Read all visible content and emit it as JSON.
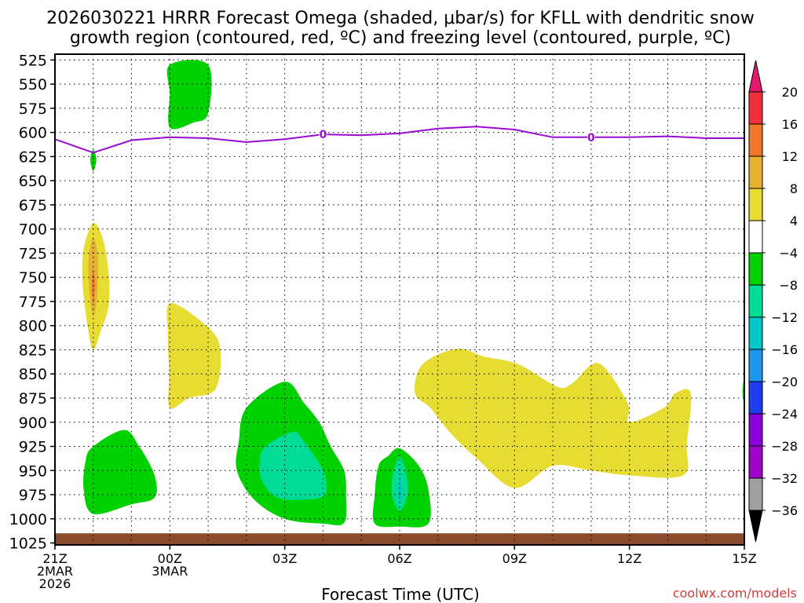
{
  "chart_data": {
    "type": "contour",
    "title_line1": "2026030221 HRRR Forecast Omega (shaded, μbar/s) for KFLL with dendritic snow",
    "title_line2": "growth region (contoured, red, ºC) and freezing level (contoured, purple, ºC)",
    "xlabel": "Forecast Time (UTC)",
    "credit": "coolwx.com/models",
    "x_range_hours": [
      0,
      18
    ],
    "y_range_mb": [
      519,
      1027
    ],
    "y_ticks": [
      525,
      550,
      575,
      600,
      625,
      650,
      675,
      700,
      725,
      750,
      775,
      800,
      825,
      850,
      875,
      900,
      925,
      950,
      975,
      1000,
      1025
    ],
    "x_ticks": [
      {
        "h": 0,
        "lines": [
          "21Z",
          "2MAR",
          "2026"
        ]
      },
      {
        "h": 3,
        "lines": [
          "00Z",
          "3MAR"
        ]
      },
      {
        "h": 6,
        "lines": [
          "03Z"
        ]
      },
      {
        "h": 9,
        "lines": [
          "06Z"
        ]
      },
      {
        "h": 12,
        "lines": [
          "09Z"
        ]
      },
      {
        "h": 15,
        "lines": [
          "12Z"
        ]
      },
      {
        "h": 18,
        "lines": [
          "15Z"
        ]
      }
    ],
    "colorbar": {
      "labels": [
        "20",
        "16",
        "12",
        "8",
        "4",
        "−4",
        "−8",
        "−12",
        "−16",
        "−20",
        "−24",
        "−28",
        "−32",
        "−36"
      ],
      "bands": [
        {
          "from": 16,
          "to": 20,
          "color": "#f0303a"
        },
        {
          "from": 12,
          "to": 16,
          "color": "#f0782a"
        },
        {
          "from": 8,
          "to": 12,
          "color": "#e6b033"
        },
        {
          "from": 4,
          "to": 8,
          "color": "#e6dc32"
        },
        {
          "from": -4,
          "to": 4,
          "color": "#ffffff"
        },
        {
          "from": -8,
          "to": -4,
          "color": "#00d200"
        },
        {
          "from": -12,
          "to": -8,
          "color": "#00dc96"
        },
        {
          "from": -16,
          "to": -12,
          "color": "#00c8c8"
        },
        {
          "from": -20,
          "to": -16,
          "color": "#1e96f0"
        },
        {
          "from": -24,
          "to": -20,
          "color": "#1e3cf0"
        },
        {
          "from": -28,
          "to": -24,
          "color": "#8c00dc"
        },
        {
          "from": -32,
          "to": -28,
          "color": "#a000c8"
        },
        {
          "from": -36,
          "to": -32,
          "color": "#a0a0a0"
        }
      ],
      "top_triangle_color": "#e6196e",
      "bottom_triangle_color": "#000000"
    },
    "freezing_level": {
      "name": "freezing level (0 ºC)",
      "color": "#9b0ad2",
      "label": "0",
      "label_hours": [
        7,
        14
      ],
      "points": [
        [
          0,
          607
        ],
        [
          1,
          621
        ],
        [
          2,
          608
        ],
        [
          3,
          605
        ],
        [
          4,
          606
        ],
        [
          5,
          610
        ],
        [
          6,
          607
        ],
        [
          7,
          602
        ],
        [
          8,
          603
        ],
        [
          9,
          601
        ],
        [
          10,
          596
        ],
        [
          11,
          594
        ],
        [
          12,
          597
        ],
        [
          13,
          605
        ],
        [
          14,
          605
        ],
        [
          15,
          605
        ],
        [
          16,
          604
        ],
        [
          17,
          606
        ],
        [
          18,
          606
        ]
      ]
    },
    "ground": {
      "color": "#8b4a2b",
      "pressure_mb": 1015
    },
    "omega_regions": [
      {
        "name": "upper-green",
        "value": -6,
        "color": "#00d200",
        "points": [
          [
            3.0,
            530
          ],
          [
            4.0,
            530
          ],
          [
            4.0,
            580
          ],
          [
            3.6,
            590
          ],
          [
            3.0,
            595
          ],
          [
            3.0,
            560
          ]
        ]
      },
      {
        "name": "small-green",
        "value": -6,
        "color": "#00d200",
        "points": [
          [
            1.0,
            618
          ],
          [
            1.08,
            628
          ],
          [
            1.0,
            640
          ],
          [
            0.92,
            628
          ]
        ]
      },
      {
        "name": "left-yellow",
        "value": 6,
        "color": "#e6dc32",
        "points": [
          [
            1.0,
            694
          ],
          [
            1.25,
            710
          ],
          [
            1.4,
            745
          ],
          [
            1.4,
            780
          ],
          [
            1.2,
            805
          ],
          [
            1.0,
            825
          ],
          [
            0.85,
            800
          ],
          [
            0.72,
            755
          ],
          [
            0.75,
            720
          ]
        ]
      },
      {
        "name": "left-orange",
        "value": 10,
        "color": "#e6b033",
        "points": [
          [
            1.0,
            709
          ],
          [
            1.12,
            730
          ],
          [
            1.1,
            770
          ],
          [
            1.0,
            790
          ],
          [
            0.9,
            765
          ],
          [
            0.88,
            730
          ]
        ]
      },
      {
        "name": "left-red-core",
        "value": 14,
        "color": "#f0782a",
        "points": [
          [
            1.0,
            742
          ],
          [
            1.05,
            758
          ],
          [
            1.0,
            776
          ],
          [
            0.96,
            758
          ]
        ]
      },
      {
        "name": "mid-yellow",
        "value": 6,
        "color": "#e6dc32",
        "points": [
          [
            3.0,
            777
          ],
          [
            3.8,
            795
          ],
          [
            4.3,
            820
          ],
          [
            4.2,
            865
          ],
          [
            3.5,
            875
          ],
          [
            3.0,
            885
          ],
          [
            2.98,
            850
          ],
          [
            2.95,
            810
          ]
        ]
      },
      {
        "name": "lower-left-green",
        "value": -6,
        "color": "#00d200",
        "points": [
          [
            1.0,
            925
          ],
          [
            1.8,
            908
          ],
          [
            2.2,
            925
          ],
          [
            2.6,
            955
          ],
          [
            2.6,
            978
          ],
          [
            2.0,
            985
          ],
          [
            1.0,
            995
          ],
          [
            0.75,
            970
          ],
          [
            0.8,
            940
          ]
        ]
      },
      {
        "name": "center-green",
        "value": -6,
        "color": "#00d200",
        "points": [
          [
            5.0,
            885
          ],
          [
            6.0,
            858
          ],
          [
            6.5,
            880
          ],
          [
            6.9,
            900
          ],
          [
            7.2,
            925
          ],
          [
            7.55,
            950
          ],
          [
            7.6,
            975
          ],
          [
            7.55,
            1004
          ],
          [
            7.0,
            1005
          ],
          [
            6.0,
            1000
          ],
          [
            5.2,
            980
          ],
          [
            4.75,
            950
          ],
          [
            4.8,
            920
          ]
        ]
      },
      {
        "name": "center-teal",
        "value": -10,
        "color": "#00dc96",
        "points": [
          [
            5.5,
            925
          ],
          [
            6.2,
            910
          ],
          [
            6.5,
            920
          ],
          [
            7.0,
            950
          ],
          [
            7.05,
            975
          ],
          [
            6.5,
            980
          ],
          [
            5.8,
            978
          ],
          [
            5.4,
            960
          ],
          [
            5.35,
            940
          ]
        ]
      },
      {
        "name": "right-green",
        "value": -6,
        "color": "#00d200",
        "points": [
          [
            9.0,
            927
          ],
          [
            9.5,
            945
          ],
          [
            9.75,
            970
          ],
          [
            9.75,
            1005
          ],
          [
            9.0,
            1008
          ],
          [
            8.35,
            1005
          ],
          [
            8.35,
            975
          ],
          [
            8.45,
            945
          ],
          [
            8.7,
            935
          ]
        ]
      },
      {
        "name": "right-teal",
        "value": -10,
        "color": "#00dc96",
        "points": [
          [
            9.0,
            936
          ],
          [
            9.18,
            955
          ],
          [
            9.2,
            975
          ],
          [
            9.0,
            992
          ],
          [
            8.8,
            975
          ],
          [
            8.82,
            955
          ]
        ]
      },
      {
        "name": "right-cyan",
        "value": -14,
        "color": "#00c8c8",
        "points": [
          [
            9.0,
            955
          ],
          [
            9.05,
            970
          ],
          [
            9.0,
            985
          ],
          [
            8.95,
            970
          ]
        ]
      },
      {
        "name": "right-yellow",
        "value": 6,
        "color": "#e6dc32",
        "points": [
          [
            9.4,
            870
          ],
          [
            9.6,
            840
          ],
          [
            10.5,
            824
          ],
          [
            11.2,
            832
          ],
          [
            12.1,
            840
          ],
          [
            13.1,
            863
          ],
          [
            13.5,
            860
          ],
          [
            14.2,
            839
          ],
          [
            14.95,
            880
          ],
          [
            15.0,
            900
          ],
          [
            15.9,
            885
          ],
          [
            16.2,
            870
          ],
          [
            16.6,
            870
          ],
          [
            16.5,
            922
          ],
          [
            16.4,
            955
          ],
          [
            15.0,
            955
          ],
          [
            14.0,
            950
          ],
          [
            13.0,
            945
          ],
          [
            12.0,
            968
          ],
          [
            11.0,
            937
          ],
          [
            10.3,
            910
          ],
          [
            9.8,
            885
          ]
        ]
      },
      {
        "name": "edge-green",
        "value": -6,
        "color": "#00d200",
        "points": [
          [
            18.0,
            855
          ],
          [
            18.0,
            880
          ],
          [
            17.95,
            868
          ]
        ]
      }
    ]
  }
}
